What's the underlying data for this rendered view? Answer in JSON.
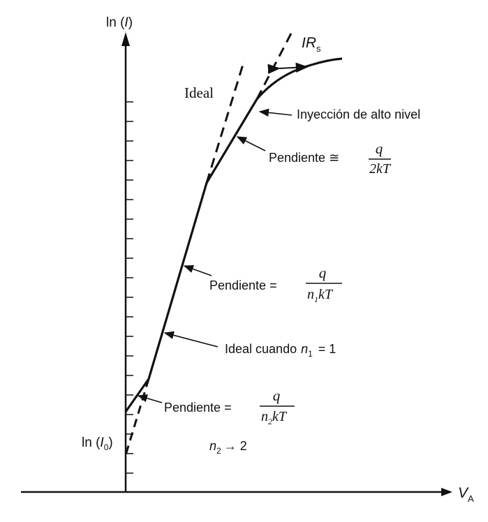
{
  "axes": {
    "y_label": {
      "prefix": "ln (",
      "var": "I",
      "suffix": ")"
    },
    "x_label": {
      "var": "V",
      "sub": "A"
    },
    "origin_label": {
      "prefix": "ln (",
      "var": "I",
      "sub": "0",
      "suffix": ")"
    }
  },
  "labels": {
    "ideal": "Ideal",
    "irs": {
      "var": "IR",
      "sub": "s"
    },
    "high_injection": "Inyección de alto nivel",
    "slope_high": {
      "text": "Pendiente ≅",
      "num": "q",
      "den": "2kT"
    },
    "slope_n1": {
      "text": "Pendiente =",
      "num": "q",
      "den_pre": "n",
      "den_sub": "1",
      "den_post": "kT"
    },
    "ideal_when": {
      "text": "Ideal cuando",
      "var": "n",
      "sub": "1",
      "rest": "= 1"
    },
    "slope_n2": {
      "text": "Pendiente =",
      "num": "q",
      "den_pre": "n",
      "den_sub": "2",
      "den_post": "kT"
    },
    "n2_limit": {
      "var": "n",
      "sub": "2",
      "rest": "→ 2"
    }
  }
}
